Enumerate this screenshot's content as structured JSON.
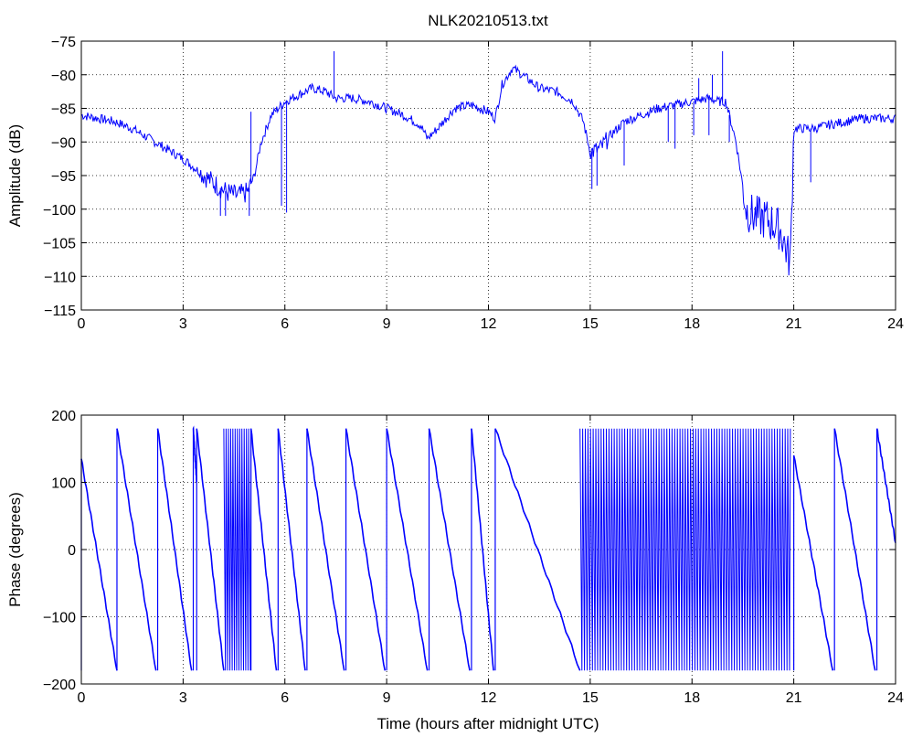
{
  "chart_data": [
    {
      "type": "line",
      "title": "NLK20210513.txt",
      "xlabel": "",
      "ylabel": "Amplitude (dB)",
      "xlim": [
        0,
        24
      ],
      "ylim": [
        -115,
        -75
      ],
      "xticks": [
        0,
        3,
        6,
        9,
        12,
        15,
        18,
        21,
        24
      ],
      "yticks": [
        -115,
        -110,
        -105,
        -100,
        -95,
        -90,
        -85,
        -80,
        -75
      ],
      "xtick_labels": [
        "0",
        "3",
        "6",
        "9",
        "12",
        "15",
        "18",
        "21",
        "24"
      ],
      "ytick_labels": [
        "−115",
        "−110",
        "−105",
        "−100",
        "−95",
        "−90",
        "−85",
        "−80",
        "−75"
      ],
      "grid": "dotted",
      "line_color": "#0000ff",
      "series": [
        {
          "x": [
            0,
            0.5,
            1,
            1.5,
            2,
            2.5,
            3,
            3.5,
            4,
            4.3,
            4.6,
            4.9,
            5.1,
            5.3,
            5.6,
            6.0,
            6.4,
            6.8,
            7.2,
            7.5,
            8.0,
            8.5,
            9.0,
            9.5,
            10.0,
            10.2,
            10.5,
            11.0,
            11.5,
            12.0,
            12.2,
            12.4,
            12.7,
            13.0,
            13.5,
            14.0,
            14.5,
            14.8,
            15.0,
            15.3,
            15.6,
            16.0,
            16.5,
            17.0,
            17.5,
            18.0,
            18.5,
            18.8,
            19.0,
            19.3,
            19.6,
            19.8,
            20.2,
            20.6,
            20.9,
            21.0,
            21.3,
            21.6,
            22.0,
            22.5,
            23.0,
            23.5,
            24.0
          ],
          "y": [
            -86,
            -86.5,
            -87,
            -88,
            -89.5,
            -91,
            -92.5,
            -94.5,
            -96.5,
            -97.5,
            -98,
            -97.5,
            -95,
            -90,
            -86,
            -84,
            -83,
            -82,
            -82.5,
            -83.5,
            -83.5,
            -84,
            -85,
            -86,
            -87.5,
            -89.5,
            -88,
            -85,
            -84.5,
            -85.5,
            -86.5,
            -81.5,
            -79,
            -80,
            -82,
            -82.5,
            -84,
            -87,
            -91.5,
            -91,
            -89,
            -87,
            -86,
            -85,
            -84.5,
            -84,
            -83.5,
            -84,
            -84,
            -90,
            -100,
            -101,
            -101.5,
            -103,
            -108,
            -88,
            -88,
            -88,
            -87.5,
            -87,
            -86.5,
            -86.5,
            -86.5
          ]
        }
      ],
      "spikes": [
        {
          "x": 4.1,
          "ymin": -101
        },
        {
          "x": 4.25,
          "ymin": -101
        },
        {
          "x": 4.95,
          "ymin": -101
        },
        {
          "x": 5.0,
          "ymax": -85.5
        },
        {
          "x": 5.9,
          "ymin": -99.5
        },
        {
          "x": 6.05,
          "ymin": -100.5
        },
        {
          "x": 7.45,
          "ymax": -76.5
        },
        {
          "x": 15.05,
          "ymin": -97
        },
        {
          "x": 15.2,
          "ymin": -96.5
        },
        {
          "x": 16.0,
          "ymin": -93.5
        },
        {
          "x": 17.3,
          "ymin": -90
        },
        {
          "x": 17.5,
          "ymin": -91
        },
        {
          "x": 18.05,
          "ymin": -89
        },
        {
          "x": 18.2,
          "ymin": -80.5
        },
        {
          "x": 18.5,
          "ymin": -89
        },
        {
          "x": 18.6,
          "ymax": -80
        },
        {
          "x": 18.9,
          "ymax": -76.5
        },
        {
          "x": 19.1,
          "ymin": -90
        },
        {
          "x": 21.5,
          "ymin": -96
        }
      ]
    },
    {
      "type": "line",
      "title": "",
      "xlabel": "Time (hours after midnight UTC)",
      "ylabel": "Phase (degrees)",
      "xlim": [
        0,
        24
      ],
      "ylim": [
        -200,
        200
      ],
      "xticks": [
        0,
        3,
        6,
        9,
        12,
        15,
        18,
        21,
        24
      ],
      "yticks": [
        -200,
        -100,
        0,
        100,
        200
      ],
      "xtick_labels": [
        "0",
        "3",
        "6",
        "9",
        "12",
        "15",
        "18",
        "21",
        "24"
      ],
      "ytick_labels": [
        "−200",
        "−100",
        "0",
        "100",
        "200"
      ],
      "grid": "dotted",
      "line_color": "#0000ff",
      "wrap_range": [
        -180,
        180
      ],
      "ramps": [
        {
          "x0": 0,
          "y0": 135,
          "x1": 1.05,
          "y1": -180
        },
        {
          "x0": 1.05,
          "y0": 180,
          "x1": 2.2,
          "y1": -180
        },
        {
          "x0": 2.25,
          "y0": 180,
          "x1": 3.25,
          "y1": -180
        },
        {
          "x0": 3.3,
          "y0": 180,
          "x1": 3.4,
          "y1": 100
        },
        {
          "x0": 3.4,
          "y0": 180,
          "x1": 4.2,
          "y1": -180
        },
        {
          "x0": 5.0,
          "y0": 180,
          "x1": 5.75,
          "y1": -180
        },
        {
          "x0": 5.8,
          "y0": 180,
          "x1": 6.6,
          "y1": -180
        },
        {
          "x0": 6.65,
          "y0": 180,
          "x1": 7.75,
          "y1": -180
        },
        {
          "x0": 7.8,
          "y0": 180,
          "x1": 8.95,
          "y1": -180
        },
        {
          "x0": 9.0,
          "y0": 180,
          "x1": 10.2,
          "y1": -180
        },
        {
          "x0": 10.25,
          "y0": 180,
          "x1": 11.45,
          "y1": -180
        },
        {
          "x0": 11.5,
          "y0": 180,
          "x1": 12.15,
          "y1": -180
        },
        {
          "x0": 12.2,
          "y0": 180,
          "x1": 14.7,
          "y1": -180
        },
        {
          "x0": 21.0,
          "y0": 140,
          "x1": 22.15,
          "y1": -180
        },
        {
          "x0": 22.2,
          "y0": 180,
          "x1": 23.4,
          "y1": -180
        },
        {
          "x0": 23.45,
          "y0": 180,
          "x1": 24.0,
          "y1": 10
        }
      ],
      "dense_bands": [
        {
          "x0": 4.2,
          "x1": 5.0,
          "count": 12
        },
        {
          "x0": 14.7,
          "x1": 20.9,
          "count": 80
        }
      ]
    }
  ]
}
